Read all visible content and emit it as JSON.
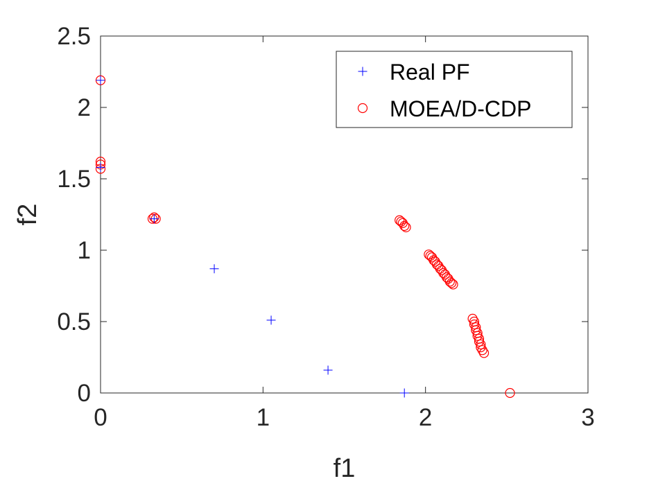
{
  "chart_data": {
    "type": "scatter",
    "title": "",
    "xlabel": "f1",
    "ylabel": "f2",
    "xlim": [
      0,
      3
    ],
    "ylim": [
      0,
      2.5
    ],
    "xticks": [
      "0",
      "1",
      "2",
      "3"
    ],
    "yticks": [
      "0",
      "0.5",
      "1",
      "1.5",
      "2",
      "2.5"
    ],
    "grid": false,
    "legend_position": "top-right",
    "series": [
      {
        "name": "Real PF",
        "marker": "plus",
        "color": "#0000ff",
        "points": [
          [
            0.0,
            2.19
          ],
          [
            0.0,
            1.58
          ],
          [
            0.33,
            1.22
          ],
          [
            0.7,
            0.87
          ],
          [
            1.05,
            0.51
          ],
          [
            1.4,
            0.16
          ],
          [
            1.87,
            0.0
          ]
        ]
      },
      {
        "name": "MOEA/D-CDP",
        "marker": "circle",
        "color": "#ff0000",
        "points": [
          [
            0.0,
            2.19
          ],
          [
            0.0,
            1.62
          ],
          [
            0.0,
            1.6
          ],
          [
            0.0,
            1.57
          ],
          [
            0.33,
            1.23
          ],
          [
            0.34,
            1.22
          ],
          [
            0.32,
            1.22
          ],
          [
            1.84,
            1.21
          ],
          [
            1.85,
            1.2
          ],
          [
            1.86,
            1.19
          ],
          [
            1.87,
            1.17
          ],
          [
            1.88,
            1.16
          ],
          [
            2.02,
            0.97
          ],
          [
            2.03,
            0.96
          ],
          [
            2.04,
            0.95
          ],
          [
            2.05,
            0.93
          ],
          [
            2.06,
            0.92
          ],
          [
            2.07,
            0.9
          ],
          [
            2.08,
            0.89
          ],
          [
            2.09,
            0.87
          ],
          [
            2.1,
            0.86
          ],
          [
            2.11,
            0.84
          ],
          [
            2.12,
            0.83
          ],
          [
            2.13,
            0.81
          ],
          [
            2.14,
            0.8
          ],
          [
            2.15,
            0.78
          ],
          [
            2.16,
            0.77
          ],
          [
            2.17,
            0.76
          ],
          [
            2.29,
            0.52
          ],
          [
            2.3,
            0.5
          ],
          [
            2.3,
            0.48
          ],
          [
            2.31,
            0.46
          ],
          [
            2.31,
            0.44
          ],
          [
            2.32,
            0.42
          ],
          [
            2.32,
            0.4
          ],
          [
            2.33,
            0.38
          ],
          [
            2.33,
            0.36
          ],
          [
            2.34,
            0.34
          ],
          [
            2.34,
            0.32
          ],
          [
            2.35,
            0.3
          ],
          [
            2.36,
            0.28
          ],
          [
            2.52,
            0.0
          ]
        ]
      }
    ]
  }
}
